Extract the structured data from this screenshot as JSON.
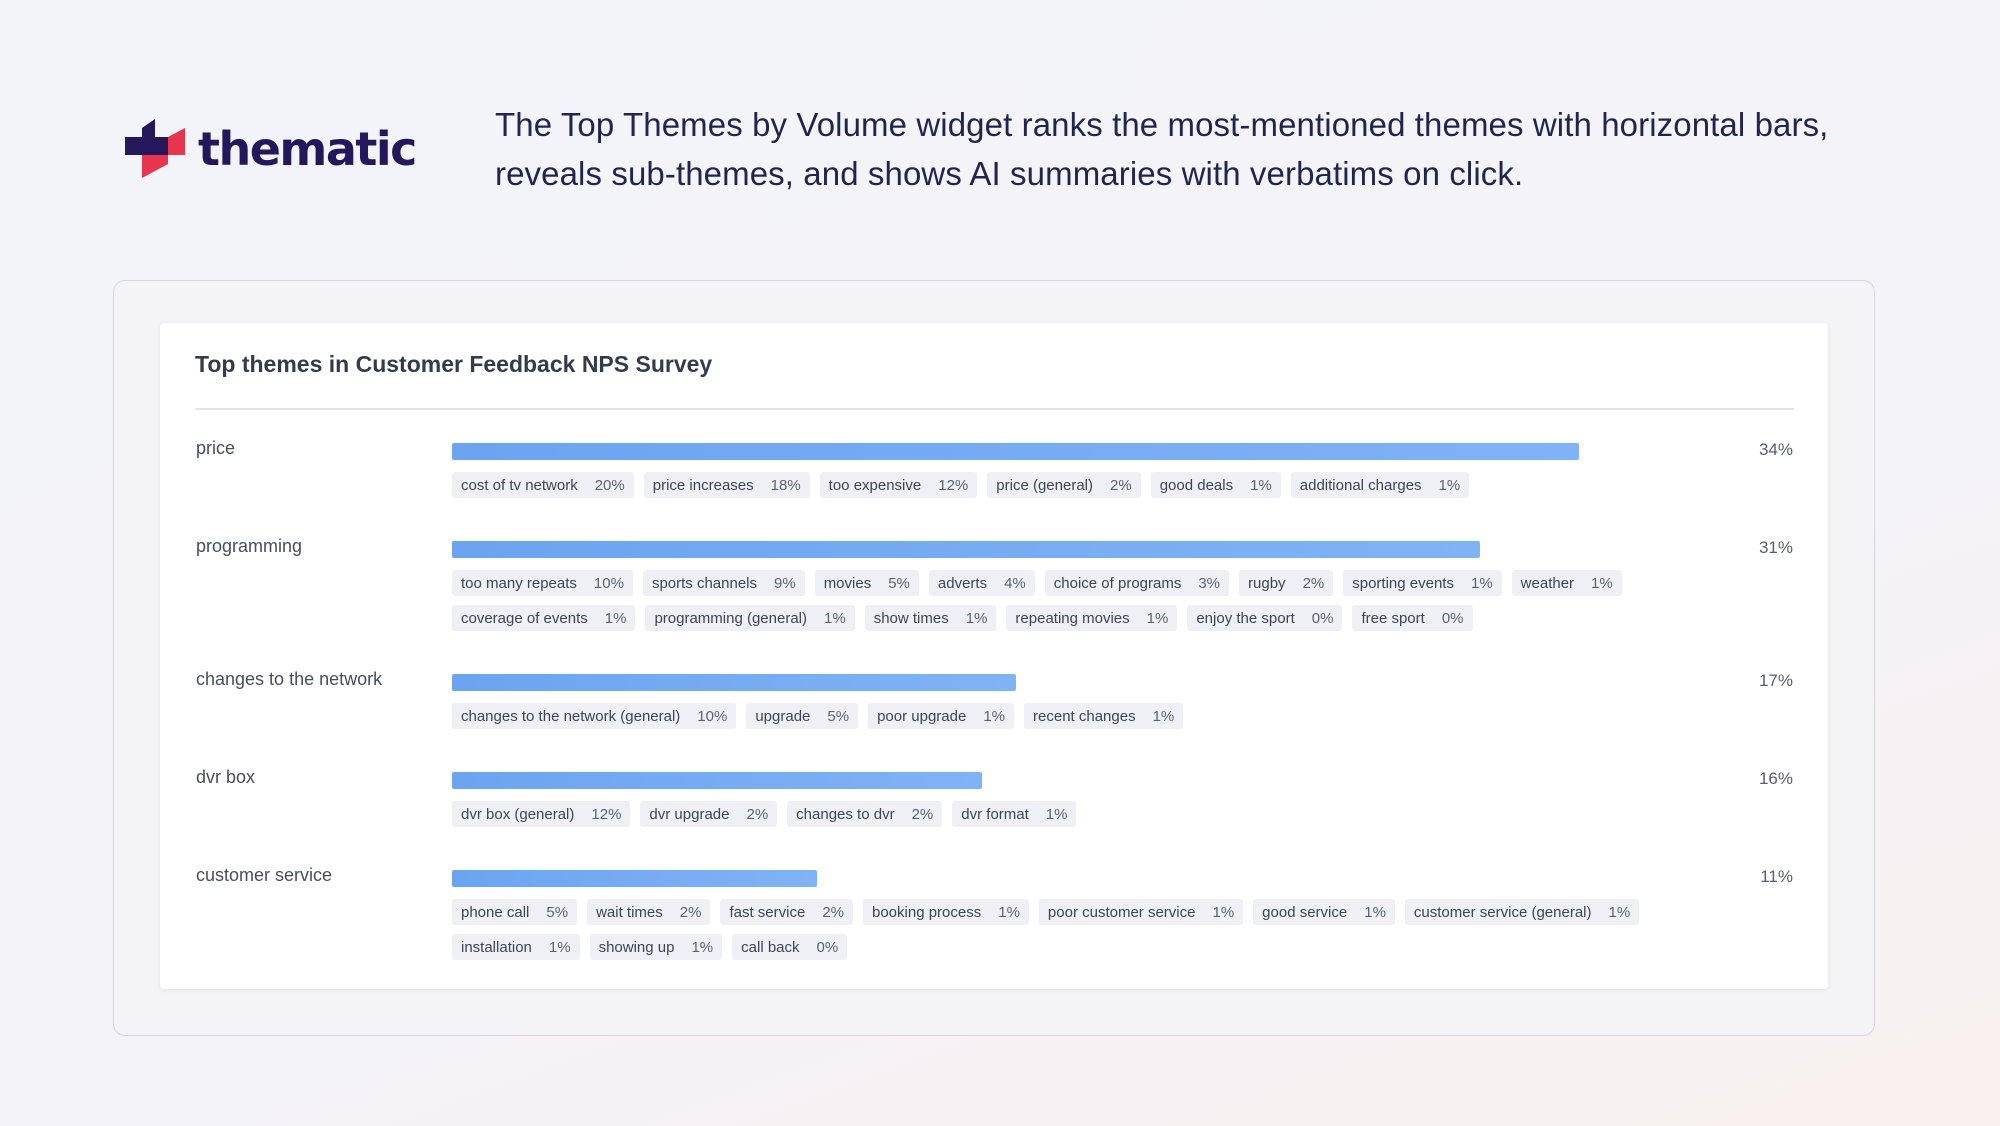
{
  "brand": {
    "name": "thematic"
  },
  "tagline": "The Top Themes by Volume widget ranks the most-mentioned themes with horizontal bars, reveals sub-themes, and shows AI summaries with verbatims on click.",
  "widget": {
    "title": "Top themes in Customer Feedback NPS Survey"
  },
  "colors": {
    "bar": "#74aaf2",
    "brand_navy": "#24175a",
    "brand_red": "#e8354e",
    "chip_bg": "#eef0f5"
  },
  "chart_data": {
    "type": "bar",
    "orientation": "horizontal",
    "xlim": [
      0,
      100
    ],
    "categories": [
      "price",
      "programming",
      "changes to the network",
      "dvr box",
      "customer service"
    ],
    "values": [
      34,
      31,
      17,
      16,
      11
    ]
  },
  "themes": [
    {
      "label": "price",
      "value": 34,
      "pct": "34%",
      "subthemes": [
        {
          "label": "cost of tv network",
          "pct": "20%"
        },
        {
          "label": "price increases",
          "pct": "18%"
        },
        {
          "label": "too expensive",
          "pct": "12%"
        },
        {
          "label": "price (general)",
          "pct": "2%"
        },
        {
          "label": "good deals",
          "pct": "1%"
        },
        {
          "label": "additional charges",
          "pct": "1%"
        }
      ]
    },
    {
      "label": "programming",
      "value": 31,
      "pct": "31%",
      "subthemes": [
        {
          "label": "too many repeats",
          "pct": "10%"
        },
        {
          "label": "sports channels",
          "pct": "9%"
        },
        {
          "label": "movies",
          "pct": "5%"
        },
        {
          "label": "adverts",
          "pct": "4%"
        },
        {
          "label": "choice of programs",
          "pct": "3%"
        },
        {
          "label": "rugby",
          "pct": "2%"
        },
        {
          "label": "sporting events",
          "pct": "1%"
        },
        {
          "label": "weather",
          "pct": "1%"
        },
        {
          "label": "coverage of events",
          "pct": "1%"
        },
        {
          "label": "programming (general)",
          "pct": "1%"
        },
        {
          "label": "show times",
          "pct": "1%"
        },
        {
          "label": "repeating movies",
          "pct": "1%"
        },
        {
          "label": "enjoy the sport",
          "pct": "0%"
        },
        {
          "label": "free sport",
          "pct": "0%"
        }
      ]
    },
    {
      "label": "changes to the network",
      "value": 17,
      "pct": "17%",
      "subthemes": [
        {
          "label": "changes to the network (general)",
          "pct": "10%"
        },
        {
          "label": "upgrade",
          "pct": "5%"
        },
        {
          "label": "poor upgrade",
          "pct": "1%"
        },
        {
          "label": "recent changes",
          "pct": "1%"
        }
      ]
    },
    {
      "label": "dvr box",
      "value": 16,
      "pct": "16%",
      "subthemes": [
        {
          "label": "dvr box (general)",
          "pct": "12%"
        },
        {
          "label": "dvr upgrade",
          "pct": "2%"
        },
        {
          "label": "changes to dvr",
          "pct": "2%"
        },
        {
          "label": "dvr format",
          "pct": "1%"
        }
      ]
    },
    {
      "label": "customer service",
      "value": 11,
      "pct": "11%",
      "subthemes": [
        {
          "label": "phone call",
          "pct": "5%"
        },
        {
          "label": "wait times",
          "pct": "2%"
        },
        {
          "label": "fast service",
          "pct": "2%"
        },
        {
          "label": "booking process",
          "pct": "1%"
        },
        {
          "label": "poor customer service",
          "pct": "1%"
        },
        {
          "label": "good service",
          "pct": "1%"
        },
        {
          "label": "customer service (general)",
          "pct": "1%"
        },
        {
          "label": "installation",
          "pct": "1%"
        },
        {
          "label": "showing up",
          "pct": "1%"
        },
        {
          "label": "call back",
          "pct": "0%"
        }
      ]
    }
  ]
}
